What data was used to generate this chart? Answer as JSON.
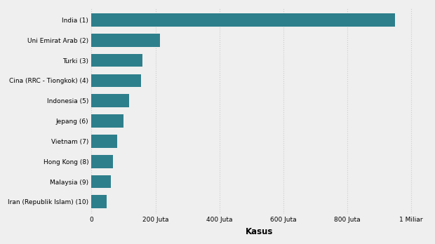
{
  "categories": [
    "India (1)",
    "Uni Emirat Arab (2)",
    "Turki (3)",
    "Cina (RRC - Tiongkok) (4)",
    "Indonesia (5)",
    "Jepang (6)",
    "Vietnam (7)",
    "Hong Kong (8)",
    "Malaysia (9)",
    "Iran (Republik Islam) (10)"
  ],
  "values": [
    950000000,
    215000000,
    160000000,
    155000000,
    118000000,
    100000000,
    80000000,
    68000000,
    60000000,
    48000000
  ],
  "bar_color": "#2e7f8c",
  "background_color": "#efefef",
  "xlabel": "Kasus",
  "xlabel_fontsize": 8.5,
  "xlabel_fontweight": "bold",
  "ytick_fontsize": 6.5,
  "xtick_fontsize": 6.5,
  "bar_height": 0.65,
  "xlim": [
    0,
    1050000000
  ],
  "xticks": [
    0,
    200000000,
    400000000,
    600000000,
    800000000,
    1000000000
  ],
  "xtick_labels": [
    "0",
    "200 Juta",
    "400 Juta",
    "600 Juta",
    "800 Juta",
    "1 Miliar"
  ],
  "grid_color": "#cccccc"
}
